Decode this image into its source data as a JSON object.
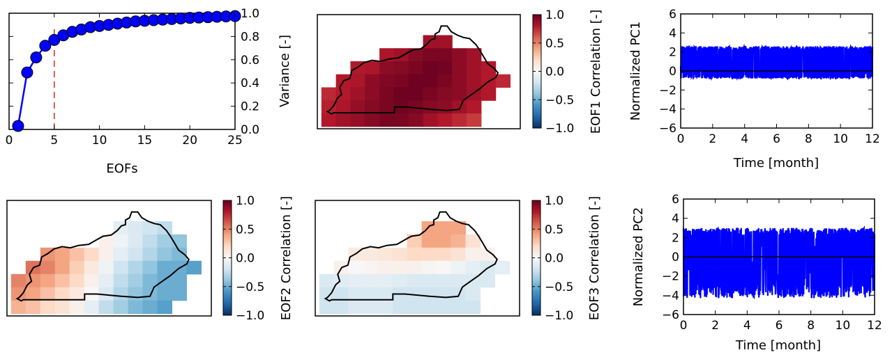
{
  "colors": {
    "series": "#0000ff",
    "threshold": "#d62728",
    "cmap_neg": "#053061",
    "cmap_mid": "#f7f7f7",
    "cmap_pos": "#67001f",
    "outline": "#000000"
  },
  "chart_data": [
    {
      "type": "line",
      "panel": "variance",
      "xlabel": "EOFs",
      "ylabel": "Variance [-]",
      "xlim": [
        0,
        25
      ],
      "ylim": [
        0.0,
        1.0
      ],
      "x_ticks": [
        "0",
        "5",
        "10",
        "15",
        "20",
        "25"
      ],
      "y_ticks": [
        "0.0",
        "0.2",
        "0.4",
        "0.6",
        "0.8",
        "1.0"
      ],
      "y_axis_side": "right",
      "markers": true,
      "threshold_x": 5,
      "x": [
        1,
        2,
        3,
        4,
        5,
        6,
        7,
        8,
        9,
        10,
        11,
        12,
        13,
        14,
        15,
        16,
        17,
        18,
        19,
        20,
        21,
        22,
        23,
        24,
        25
      ],
      "values": [
        0.03,
        0.49,
        0.62,
        0.72,
        0.77,
        0.81,
        0.84,
        0.86,
        0.88,
        0.89,
        0.9,
        0.91,
        0.92,
        0.93,
        0.935,
        0.94,
        0.945,
        0.95,
        0.955,
        0.96,
        0.963,
        0.966,
        0.969,
        0.972,
        0.975
      ]
    },
    {
      "type": "heatmap",
      "panel": "eof1",
      "colorbar_label": "EOF1 Correlation [-]",
      "clim": [
        -1.0,
        1.0
      ],
      "colorbar_ticks": [
        "−1.0",
        "−0.5",
        "0.0",
        "0.5",
        "1.0"
      ],
      "nx": 13,
      "ny": 7,
      "values": [
        [
          null,
          null,
          null,
          null,
          null,
          null,
          null,
          0.85,
          0.85,
          null,
          null,
          null,
          null
        ],
        [
          null,
          null,
          null,
          null,
          0.82,
          0.85,
          0.92,
          0.95,
          0.95,
          0.9,
          0.85,
          null,
          null
        ],
        [
          null,
          null,
          0.8,
          0.82,
          0.9,
          0.92,
          0.95,
          0.98,
          0.97,
          0.9,
          0.85,
          0.8,
          null
        ],
        [
          null,
          0.8,
          0.82,
          0.9,
          0.93,
          0.95,
          0.98,
          0.98,
          0.95,
          0.9,
          0.85,
          0.8,
          0.75
        ],
        [
          0.75,
          0.8,
          0.85,
          0.9,
          0.95,
          0.98,
          0.98,
          0.95,
          0.92,
          0.9,
          0.85,
          0.8,
          null
        ],
        [
          0.78,
          0.82,
          0.88,
          0.92,
          0.95,
          0.97,
          0.95,
          0.92,
          0.9,
          0.85,
          0.8,
          null,
          null
        ],
        [
          0.8,
          0.85,
          0.88,
          0.92,
          0.95,
          0.95,
          0.92,
          0.85,
          0.8,
          0.75,
          0.7,
          null,
          null
        ]
      ]
    },
    {
      "type": "line",
      "panel": "pc1",
      "xlabel": "Time [month]",
      "ylabel": "Normalized PC1",
      "xlim": [
        0,
        12
      ],
      "ylim": [
        -6,
        6
      ],
      "x_ticks": [
        "0",
        "2",
        "4",
        "6",
        "8",
        "10",
        "12"
      ],
      "y_ticks": [
        "−6",
        "−4",
        "−2",
        "0",
        "2",
        "4",
        "6"
      ],
      "band": [
        -0.8,
        2.6
      ]
    },
    {
      "type": "heatmap",
      "panel": "eof2",
      "colorbar_label": "EOF2 Correlation [-]",
      "clim": [
        -1.0,
        1.0
      ],
      "colorbar_ticks": [
        "−1.0",
        "−0.5",
        "0.0",
        "0.5",
        "1.0"
      ],
      "nx": 13,
      "ny": 7,
      "values": [
        [
          null,
          null,
          null,
          null,
          null,
          null,
          null,
          -0.1,
          -0.15,
          -0.2,
          -0.25,
          null,
          null
        ],
        [
          null,
          null,
          null,
          null,
          null,
          null,
          0.05,
          -0.05,
          -0.15,
          -0.25,
          -0.35,
          -0.4,
          null
        ],
        [
          null,
          null,
          0.45,
          0.4,
          0.3,
          0.2,
          0.05,
          -0.1,
          -0.2,
          -0.3,
          -0.4,
          -0.45,
          null
        ],
        [
          null,
          0.55,
          0.5,
          0.4,
          0.25,
          0.1,
          -0.05,
          -0.2,
          -0.3,
          -0.4,
          -0.5,
          -0.5,
          -0.55
        ],
        [
          0.5,
          0.45,
          0.4,
          0.3,
          0.2,
          0.05,
          -0.1,
          -0.25,
          -0.35,
          -0.45,
          -0.5,
          -0.5,
          null
        ],
        [
          0.45,
          0.4,
          0.3,
          0.2,
          0.1,
          0.0,
          -0.15,
          -0.3,
          -0.4,
          -0.45,
          -0.5,
          -0.5,
          null
        ],
        [
          0.35,
          0.3,
          0.2,
          0.15,
          0.05,
          -0.1,
          -0.25,
          -0.35,
          -0.45,
          -0.5,
          -0.55,
          null,
          null
        ]
      ]
    },
    {
      "type": "heatmap",
      "panel": "eof3",
      "colorbar_label": "EOF3 Correlation [-]",
      "clim": [
        -1.0,
        1.0
      ],
      "colorbar_ticks": [
        "−1.0",
        "−0.5",
        "0.0",
        "0.5",
        "1.0"
      ],
      "nx": 13,
      "ny": 7,
      "values": [
        [
          null,
          null,
          null,
          null,
          null,
          null,
          null,
          0.4,
          0.4,
          0.4,
          null,
          null,
          null
        ],
        [
          null,
          null,
          null,
          null,
          null,
          null,
          0.25,
          0.4,
          0.4,
          0.35,
          0.15,
          null,
          null
        ],
        [
          null,
          null,
          0.1,
          0.1,
          0.12,
          0.15,
          0.2,
          0.2,
          0.2,
          0.15,
          0.05,
          0.05,
          null
        ],
        [
          null,
          0.05,
          0.0,
          0.02,
          0.05,
          0.05,
          0.05,
          0.02,
          0.0,
          -0.05,
          -0.1,
          -0.15,
          -0.1
        ],
        [
          -0.15,
          -0.12,
          -0.1,
          -0.1,
          -0.1,
          -0.12,
          -0.15,
          -0.15,
          -0.15,
          -0.15,
          -0.15,
          -0.15,
          null
        ],
        [
          -0.2,
          -0.2,
          -0.15,
          -0.15,
          -0.15,
          -0.2,
          -0.2,
          -0.2,
          -0.2,
          -0.2,
          -0.15,
          null,
          null
        ],
        [
          -0.2,
          -0.2,
          -0.15,
          -0.15,
          -0.15,
          -0.2,
          -0.2,
          -0.2,
          -0.2,
          -0.2,
          -0.2,
          null,
          null
        ]
      ]
    },
    {
      "type": "line",
      "panel": "pc2",
      "xlabel": "Time [month]",
      "ylabel": "Normalized PC2",
      "xlim": [
        0,
        12
      ],
      "ylim": [
        -6,
        6
      ],
      "x_ticks": [
        "0",
        "2",
        "4",
        "6",
        "8",
        "10",
        "12"
      ],
      "y_ticks": [
        "−6",
        "−4",
        "−2",
        "0",
        "2",
        "4",
        "6"
      ],
      "band": [
        -4.3,
        3.0
      ]
    }
  ]
}
